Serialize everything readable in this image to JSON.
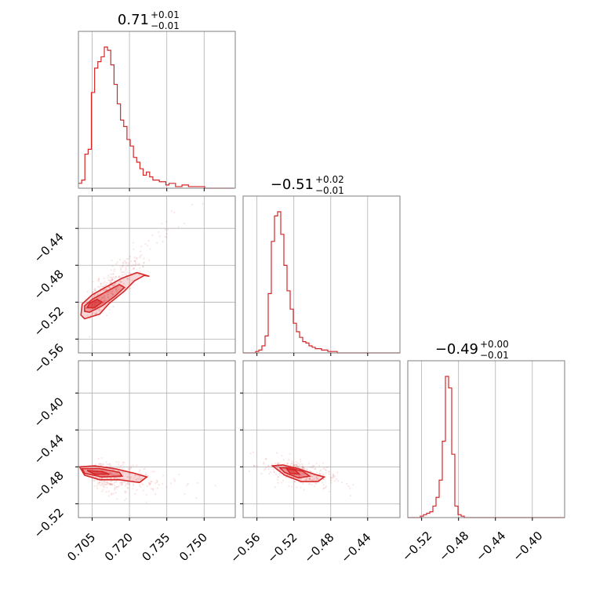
{
  "figure": {
    "type": "corner plot",
    "color": "#d62728"
  },
  "chart_data": [
    {
      "type": "histogram",
      "panel": "diag-0",
      "title_value": "0.71",
      "title_plus": "+0.01",
      "title_minus": "−0.01",
      "xlim": [
        0.6995,
        0.7625
      ],
      "xticks": [
        0.705,
        0.72,
        0.735,
        0.75
      ],
      "bins": {
        "start": 0.6995,
        "width": 0.0013,
        "counts": [
          0.03,
          0.05,
          0.21,
          0.24,
          0.59,
          0.74,
          0.78,
          0.81,
          0.87,
          0.85,
          0.76,
          0.64,
          0.52,
          0.42,
          0.38,
          0.3,
          0.26,
          0.19,
          0.16,
          0.12,
          0.08,
          0.1,
          0.07,
          0.05,
          0.05,
          0.04,
          0.04,
          0.02,
          0.03,
          0.03,
          0.01,
          0.01,
          0.02,
          0.02,
          0.01,
          0.01,
          0.01,
          0.01,
          0.01,
          0.0,
          0.0,
          0.0,
          0.0,
          0.0,
          0.0,
          0.0,
          0.0,
          0.0
        ]
      }
    },
    {
      "type": "histogram",
      "panel": "diag-1",
      "title_value": "−0.51",
      "title_plus": "+0.02",
      "title_minus": "−0.01",
      "xlim": [
        -0.575,
        -0.405
      ],
      "xticks": [
        -0.56,
        -0.52,
        -0.48,
        -0.44
      ],
      "bins": {
        "start": -0.575,
        "width": 0.0034,
        "counts": [
          0,
          0,
          0,
          0,
          0.01,
          0.02,
          0.05,
          0.12,
          0.42,
          0.79,
          0.97,
          1.0,
          0.84,
          0.62,
          0.44,
          0.31,
          0.21,
          0.15,
          0.11,
          0.08,
          0.07,
          0.05,
          0.04,
          0.03,
          0.03,
          0.02,
          0.02,
          0.01,
          0.01,
          0.01,
          0,
          0,
          0,
          0,
          0,
          0,
          0,
          0,
          0,
          0,
          0,
          0,
          0,
          0,
          0,
          0,
          0,
          0,
          0,
          0
        ]
      }
    },
    {
      "type": "histogram",
      "panel": "diag-2",
      "title_value": "−0.49",
      "title_plus": "+0.00",
      "title_minus": "−0.01",
      "xlim": [
        -0.535,
        -0.365
      ],
      "xticks": [
        -0.52,
        -0.48,
        -0.44,
        -0.4
      ],
      "bins": {
        "start": -0.535,
        "width": 0.0034,
        "counts": [
          0,
          0,
          0,
          0,
          0.01,
          0.02,
          0.03,
          0.04,
          0.08,
          0.14,
          0.26,
          0.53,
          0.98,
          0.9,
          0.44,
          0.08,
          0.02,
          0.01,
          0,
          0,
          0,
          0,
          0,
          0,
          0,
          0,
          0,
          0,
          0,
          0,
          0,
          0,
          0,
          0,
          0,
          0,
          0,
          0,
          0,
          0,
          0,
          0,
          0,
          0,
          0,
          0,
          0,
          0,
          0,
          0
        ]
      }
    },
    {
      "type": "scatter",
      "panel": "p10",
      "x_param": 0,
      "y_param": 1,
      "xlim": [
        0.6995,
        0.7625
      ],
      "ylim": [
        -0.575,
        -0.405
      ],
      "yticks": [
        -0.44,
        -0.48,
        -0.52,
        -0.56
      ],
      "cloud": {
        "x0": 0.704,
        "y0": -0.526,
        "slope": 2.6,
        "spread_x": 0.009,
        "spread_perp": 0.009,
        "n": 400
      },
      "contours": [
        {
          "level": "outer",
          "points": [
            [
              0.7005,
              -0.534
            ],
            [
              0.702,
              -0.538
            ],
            [
              0.708,
              -0.533
            ],
            [
              0.712,
              -0.521
            ],
            [
              0.718,
              -0.508
            ],
            [
              0.722,
              -0.497
            ],
            [
              0.726,
              -0.491
            ],
            [
              0.728,
              -0.492
            ],
            [
              0.723,
              -0.488
            ],
            [
              0.717,
              -0.494
            ],
            [
              0.711,
              -0.503
            ],
            [
              0.705,
              -0.512
            ],
            [
              0.701,
              -0.522
            ]
          ]
        },
        {
          "level": "mid",
          "points": [
            [
              0.702,
              -0.53
            ],
            [
              0.704,
              -0.531
            ],
            [
              0.709,
              -0.524
            ],
            [
              0.714,
              -0.514
            ],
            [
              0.718,
              -0.504
            ],
            [
              0.716,
              -0.501
            ],
            [
              0.711,
              -0.508
            ],
            [
              0.705,
              -0.517
            ],
            [
              0.702,
              -0.524
            ]
          ]
        },
        {
          "level": "inner",
          "points": [
            [
              0.703,
              -0.526
            ],
            [
              0.706,
              -0.526
            ],
            [
              0.709,
              -0.52
            ],
            [
              0.707,
              -0.517
            ],
            [
              0.704,
              -0.521
            ]
          ]
        }
      ]
    },
    {
      "type": "scatter",
      "panel": "p20",
      "x_param": 0,
      "y_param": 2,
      "xlim": [
        0.6995,
        0.7625
      ],
      "ylim": [
        -0.535,
        -0.365
      ],
      "yticks": [
        -0.4,
        -0.44,
        -0.48,
        -0.52
      ],
      "cloud": {
        "x0": 0.706,
        "y0": -0.488,
        "slope": -0.45,
        "spread_x": 0.009,
        "spread_perp": 0.008,
        "n": 350
      },
      "contours": [
        {
          "level": "outer",
          "points": [
            [
              0.7,
              -0.48
            ],
            [
              0.706,
              -0.479
            ],
            [
              0.714,
              -0.482
            ],
            [
              0.722,
              -0.487
            ],
            [
              0.727,
              -0.491
            ],
            [
              0.724,
              -0.497
            ],
            [
              0.716,
              -0.494
            ],
            [
              0.708,
              -0.494
            ],
            [
              0.702,
              -0.489
            ]
          ]
        },
        {
          "level": "mid",
          "points": [
            [
              0.701,
              -0.482
            ],
            [
              0.708,
              -0.482
            ],
            [
              0.716,
              -0.486
            ],
            [
              0.717,
              -0.49
            ],
            [
              0.709,
              -0.491
            ],
            [
              0.702,
              -0.487
            ]
          ]
        },
        {
          "level": "inner",
          "points": [
            [
              0.703,
              -0.484
            ],
            [
              0.709,
              -0.485
            ],
            [
              0.712,
              -0.488
            ],
            [
              0.706,
              -0.488
            ]
          ]
        }
      ]
    },
    {
      "type": "scatter",
      "panel": "p21",
      "x_param": 1,
      "y_param": 2,
      "xlim": [
        -0.575,
        -0.405
      ],
      "ylim": [
        -0.535,
        -0.365
      ],
      "yticks": [
        -0.4,
        -0.44,
        -0.48,
        -0.52
      ],
      "cloud": {
        "x0": -0.515,
        "y0": -0.486,
        "slope": -0.18,
        "spread_x": 0.02,
        "spread_perp": 0.007,
        "n": 350
      },
      "contours": [
        {
          "level": "outer",
          "points": [
            [
              -0.543,
              -0.479
            ],
            [
              -0.532,
              -0.478
            ],
            [
              -0.515,
              -0.482
            ],
            [
              -0.498,
              -0.488
            ],
            [
              -0.487,
              -0.491
            ],
            [
              -0.494,
              -0.496
            ],
            [
              -0.512,
              -0.496
            ],
            [
              -0.53,
              -0.489
            ]
          ]
        },
        {
          "level": "mid",
          "points": [
            [
              -0.535,
              -0.481
            ],
            [
              -0.525,
              -0.481
            ],
            [
              -0.51,
              -0.485
            ],
            [
              -0.503,
              -0.49
            ],
            [
              -0.515,
              -0.492
            ],
            [
              -0.53,
              -0.486
            ]
          ]
        },
        {
          "level": "inner",
          "points": [
            [
              -0.528,
              -0.482
            ],
            [
              -0.518,
              -0.484
            ],
            [
              -0.514,
              -0.488
            ],
            [
              -0.524,
              -0.487
            ]
          ]
        }
      ]
    }
  ]
}
